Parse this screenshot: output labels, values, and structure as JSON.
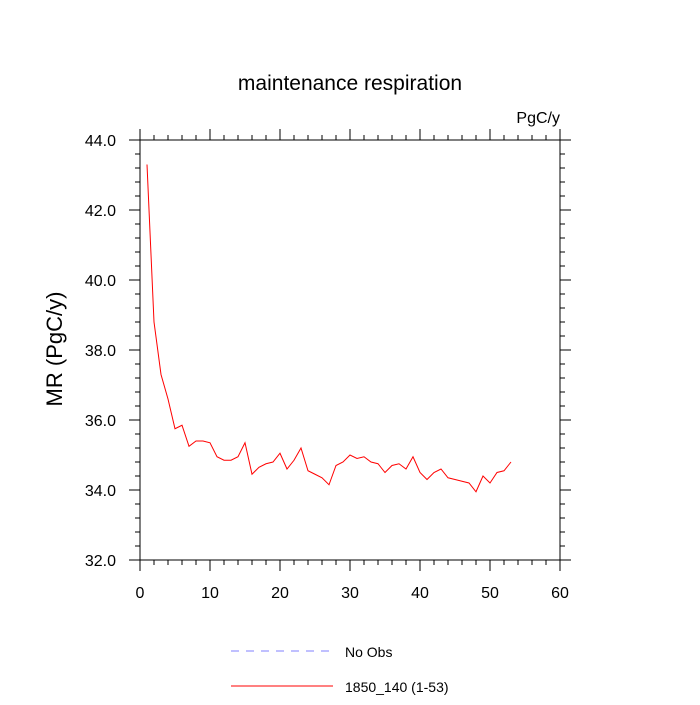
{
  "chart_data": {
    "type": "line",
    "title": "maintenance respiration",
    "units_label": "PgC/y",
    "ylabel": "MR  (PgC/y)",
    "xlabel": "",
    "xlim": [
      0,
      60
    ],
    "ylim": [
      32.0,
      44.0
    ],
    "x_ticks": [
      0,
      10,
      20,
      30,
      40,
      50,
      60
    ],
    "x_tick_labels": [
      "0",
      "10",
      "20",
      "30",
      "40",
      "50",
      "60"
    ],
    "y_ticks": [
      32.0,
      34.0,
      36.0,
      38.0,
      40.0,
      42.0,
      44.0
    ],
    "y_tick_labels": [
      "32.0",
      "34.0",
      "36.0",
      "38.0",
      "40.0",
      "42.0",
      "44.0"
    ],
    "grid": false,
    "legend_position": "bottom",
    "series": [
      {
        "name": "1850_140 (1-53)",
        "color": "#ff0000",
        "style": "solid",
        "x": [
          1,
          2,
          3,
          4,
          5,
          6,
          7,
          8,
          9,
          10,
          11,
          12,
          13,
          14,
          15,
          16,
          17,
          18,
          19,
          20,
          21,
          22,
          23,
          24,
          25,
          26,
          27,
          28,
          29,
          30,
          31,
          32,
          33,
          34,
          35,
          36,
          37,
          38,
          39,
          40,
          41,
          42,
          43,
          44,
          45,
          46,
          47,
          48,
          49,
          50,
          51,
          52,
          53
        ],
        "y": [
          43.3,
          38.8,
          37.3,
          36.6,
          35.75,
          35.85,
          35.25,
          35.4,
          35.4,
          35.35,
          34.95,
          34.85,
          34.85,
          34.95,
          35.35,
          34.45,
          34.65,
          34.75,
          34.8,
          35.05,
          34.6,
          34.85,
          35.2,
          34.55,
          34.45,
          34.35,
          34.15,
          34.7,
          34.8,
          35.0,
          34.9,
          34.95,
          34.8,
          34.75,
          34.5,
          34.7,
          34.75,
          34.6,
          34.95,
          34.5,
          34.3,
          34.5,
          34.6,
          34.35,
          34.3,
          34.25,
          34.2,
          33.95,
          34.4,
          34.2,
          34.5,
          34.55,
          34.8
        ]
      }
    ],
    "legend": [
      {
        "label": "No Obs",
        "color": "#8080ff",
        "style": "dashed"
      },
      {
        "label": "1850_140 (1-53)",
        "color": "#ff0000",
        "style": "solid"
      }
    ]
  }
}
